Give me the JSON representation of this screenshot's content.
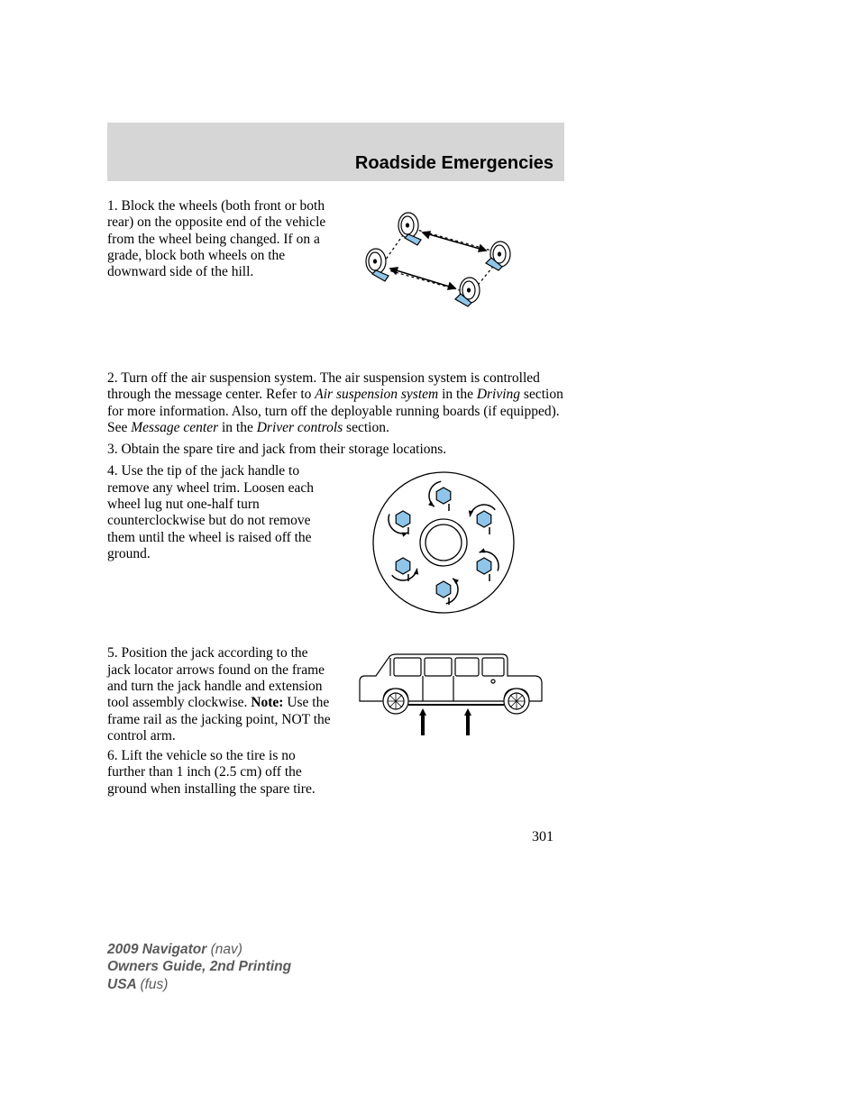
{
  "header": {
    "title": "Roadside Emergencies"
  },
  "steps": {
    "s1": "1. Block the wheels (both front or both rear) on the opposite end of the vehicle from the wheel being changed. If on a grade, block both wheels on the downward side of the hill.",
    "s2a": "2. Turn off the air suspension system. The air suspension system is controlled through the message center. Refer to ",
    "s2b": "Air suspension system",
    "s2c": " in the ",
    "s2d": "Driving",
    "s2e": " section for more information. Also, turn off the deployable running boards (if equipped). See ",
    "s2f": "Message center",
    "s2g": " in the ",
    "s2h": "Driver controls",
    "s2i": " section.",
    "s3": "3. Obtain the spare tire and jack from their storage locations.",
    "s4": "4. Use the tip of the jack handle to remove any wheel trim. Loosen each wheel lug nut one-half turn counterclockwise but do not remove them until the wheel is raised off the ground.",
    "s5a": "5. Position the jack according to the jack locator arrows found on the frame and turn the jack handle and extension tool assembly clockwise. ",
    "s5note": "Note:",
    "s5b": " Use the frame rail as the jacking point, NOT the control arm.",
    "s6": "6. Lift the vehicle so the tire is no further than 1 inch (2.5 cm) off the ground when installing the spare tire."
  },
  "page_number": "301",
  "footer": {
    "l1a": "2009 Navigator ",
    "l1b": "(nav)",
    "l2": "Owners Guide, 2nd Printing",
    "l3a": "USA ",
    "l3b": "(fus)"
  },
  "figures": {
    "wheels": {
      "stroke": "#000000",
      "fill_wheel": "#ffffff",
      "fill_block": "#8fc5e8",
      "arrow": "#000000"
    },
    "lugnuts": {
      "stroke": "#000000",
      "nut_fill": "#8fc5e8",
      "bg": "#ffffff"
    },
    "vehicle": {
      "stroke": "#000000",
      "bg": "#ffffff"
    }
  }
}
